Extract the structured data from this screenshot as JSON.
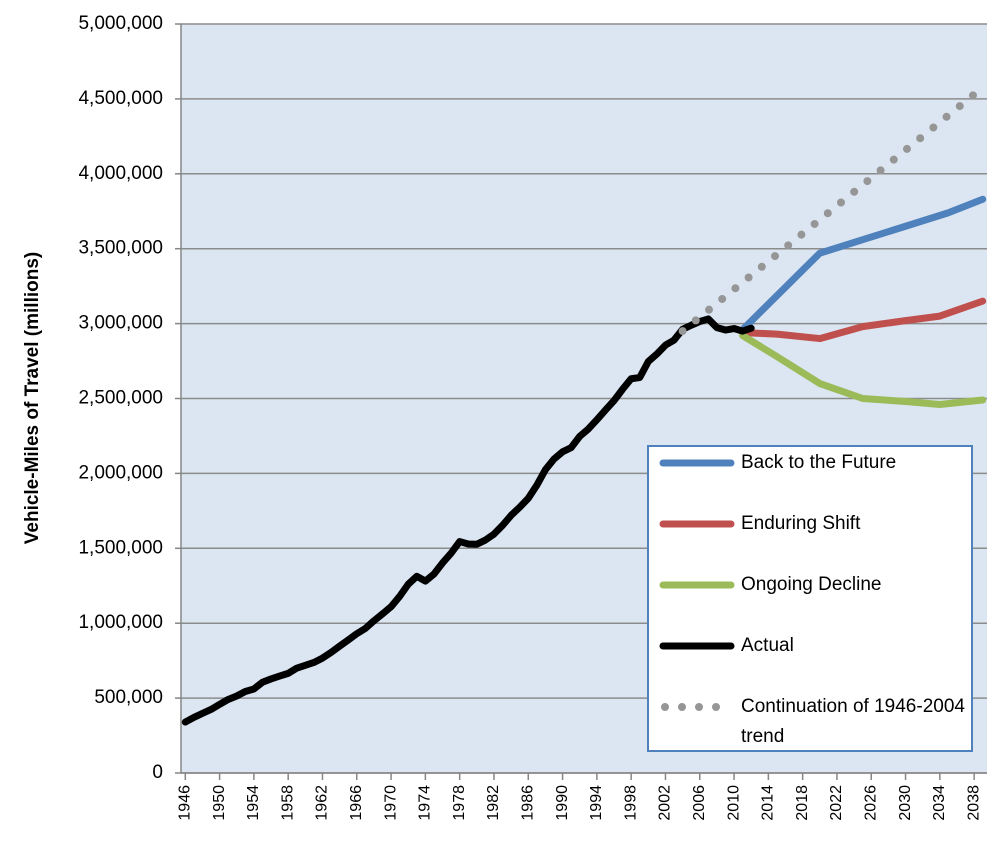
{
  "chart_data": {
    "type": "line",
    "y_label": "Vehicle-Miles of Travel (millions)",
    "xlim": [
      1945.5,
      2039.5
    ],
    "xticks": [
      1946,
      1950,
      1954,
      1958,
      1962,
      1966,
      1970,
      1974,
      1978,
      1982,
      1986,
      1990,
      1994,
      1998,
      2002,
      2006,
      2010,
      2014,
      2018,
      2022,
      2026,
      2030,
      2034,
      2038
    ],
    "ylim": [
      0,
      5000000
    ],
    "yticks": [
      0,
      {
        "value": 500000,
        "label": "500,000"
      },
      {
        "value": 1000000,
        "label": "1,000,000"
      },
      {
        "value": 1500000,
        "label": "1,500,000"
      },
      {
        "value": 2000000,
        "label": "2,000,000"
      },
      {
        "value": 2500000,
        "label": "2,500,000"
      },
      {
        "value": 3000000,
        "label": "3,000,000"
      },
      {
        "value": 3500000,
        "label": "3,500,000"
      },
      {
        "value": 4000000,
        "label": "4,000,000"
      },
      {
        "value": 4500000,
        "label": "4,500,000"
      },
      {
        "value": 5000000,
        "label": "5,000,000"
      }
    ],
    "grid": true,
    "legend": "lower right",
    "series": [
      {
        "name": "Back to the Future",
        "color": "#4f81bd",
        "style": "solid",
        "x": [
          2011,
          2020,
          2025,
          2030,
          2035,
          2039
        ],
        "values": [
          2960000,
          3470000,
          3560000,
          3650000,
          3740000,
          3830000
        ]
      },
      {
        "name": "Enduring Shift",
        "color": "#c0504d",
        "style": "solid",
        "x": [
          2011,
          2015,
          2020,
          2025,
          2030,
          2034,
          2039
        ],
        "values": [
          2940000,
          2930000,
          2900000,
          2980000,
          3020000,
          3050000,
          3150000
        ]
      },
      {
        "name": "Ongoing Decline",
        "color": "#9bbb59",
        "style": "solid",
        "x": [
          2011,
          2015,
          2020,
          2025,
          2030,
          2034,
          2039
        ],
        "values": [
          2920000,
          2780000,
          2600000,
          2500000,
          2480000,
          2460000,
          2490000
        ]
      },
      {
        "name": "Actual",
        "color": "#000000",
        "style": "solid",
        "x": [
          1946,
          1947,
          1948,
          1949,
          1950,
          1951,
          1952,
          1953,
          1954,
          1955,
          1956,
          1957,
          1958,
          1959,
          1960,
          1961,
          1962,
          1963,
          1964,
          1965,
          1966,
          1967,
          1968,
          1969,
          1970,
          1971,
          1972,
          1973,
          1974,
          1975,
          1976,
          1977,
          1978,
          1979,
          1980,
          1981,
          1982,
          1983,
          1984,
          1985,
          1986,
          1987,
          1988,
          1989,
          1990,
          1991,
          1992,
          1993,
          1994,
          1995,
          1996,
          1997,
          1998,
          1999,
          2000,
          2001,
          2002,
          2003,
          2004,
          2005,
          2006,
          2007,
          2008,
          2009,
          2010,
          2011,
          2012
        ],
        "values": [
          340000,
          371000,
          398000,
          424000,
          458000,
          491000,
          514000,
          544000,
          561000,
          606000,
          628000,
          647000,
          665000,
          700000,
          719000,
          738000,
          767000,
          805000,
          847000,
          888000,
          930000,
          965000,
          1016000,
          1062000,
          1110000,
          1179000,
          1260000,
          1313000,
          1281000,
          1328000,
          1402000,
          1467000,
          1545000,
          1529000,
          1527000,
          1555000,
          1595000,
          1653000,
          1720000,
          1774000,
          1834000,
          1921000,
          2025000,
          2096000,
          2144000,
          2172000,
          2247000,
          2296000,
          2358000,
          2423000,
          2486000,
          2562000,
          2632000,
          2640000,
          2747000,
          2797000,
          2856000,
          2890000,
          2962000,
          2989000,
          3014000,
          3031000,
          2973000,
          2957000,
          2967000,
          2950000,
          2969000
        ]
      },
      {
        "name": "Continuation of 1946-2004 trend",
        "color": "#969696",
        "style": "dotted",
        "x": [
          2004,
          2038
        ],
        "values": [
          2950000,
          4530000
        ]
      }
    ]
  }
}
